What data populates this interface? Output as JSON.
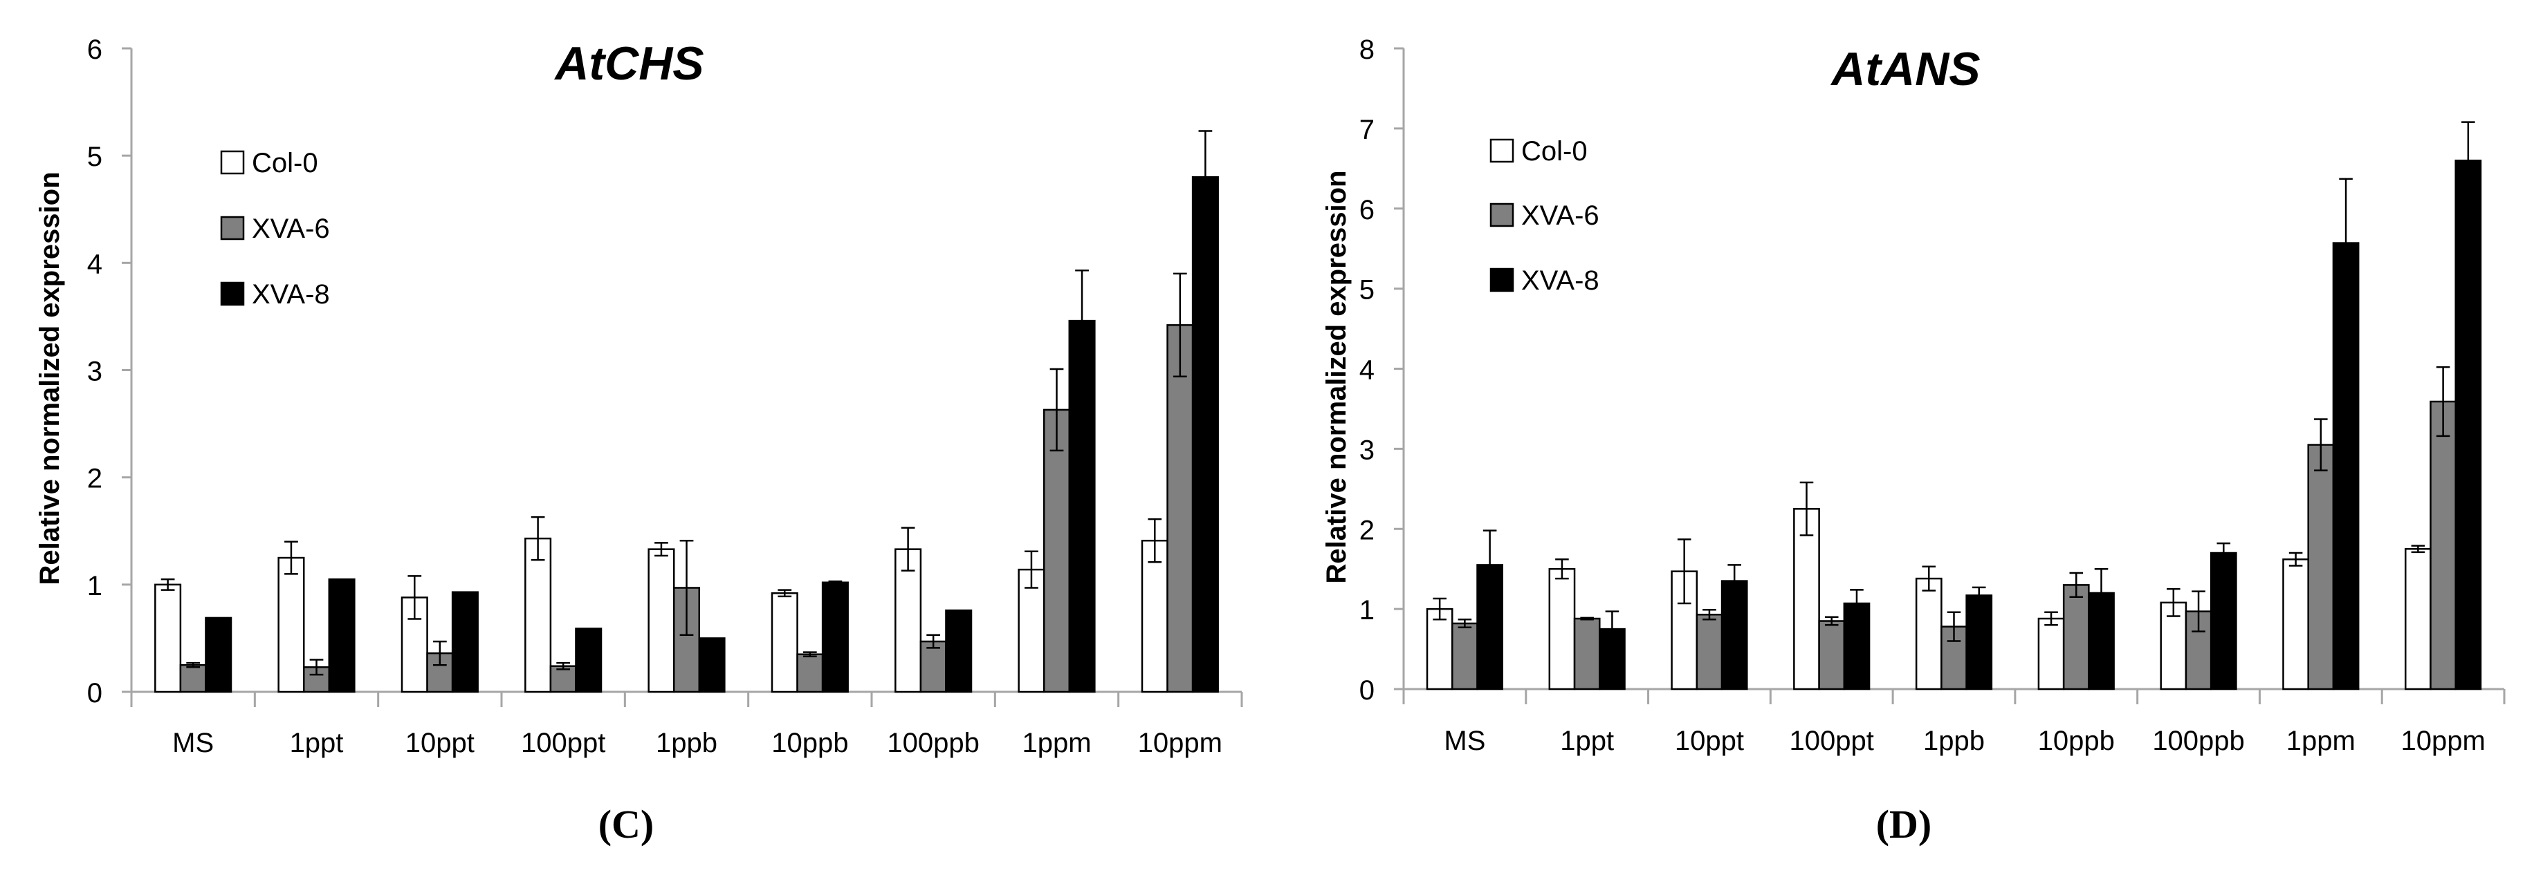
{
  "colors": {
    "col0": "#ffffff",
    "xva6": "#808080",
    "xva8": "#000000",
    "axis": "#a6a6a6",
    "stroke": "#000000"
  },
  "chart_data": [
    {
      "type": "bar",
      "panel_label": "(C)",
      "title": "AtCHS",
      "xlabel": "",
      "ylabel": "Relative normalized expression",
      "ylim": [
        0,
        6
      ],
      "yticks": [
        "0",
        "1",
        "2",
        "3",
        "4",
        "5",
        "6"
      ],
      "grid": false,
      "legend_position": "top-left",
      "categories": [
        "MS",
        "1ppt",
        "10ppt",
        "100ppt",
        "1ppb",
        "10ppb",
        "100ppb",
        "1ppm",
        "10ppm"
      ],
      "series": [
        {
          "name": "Col-0",
          "color": "#ffffff",
          "values": [
            1.0,
            1.25,
            0.88,
            1.43,
            1.33,
            0.92,
            1.33,
            1.14,
            1.41
          ],
          "errors": [
            0.05,
            0.15,
            0.2,
            0.2,
            0.06,
            0.03,
            0.2,
            0.17,
            0.2
          ]
        },
        {
          "name": "XVA-6",
          "color": "#808080",
          "values": [
            0.25,
            0.23,
            0.36,
            0.24,
            0.97,
            0.35,
            0.47,
            2.63,
            3.42
          ],
          "errors": [
            0.02,
            0.07,
            0.11,
            0.03,
            0.44,
            0.02,
            0.06,
            0.38,
            0.48
          ]
        },
        {
          "name": "XVA-8",
          "color": "#000000",
          "values": [
            0.69,
            1.05,
            0.93,
            0.59,
            0.5,
            1.02,
            0.76,
            3.46,
            4.8
          ],
          "errors": [
            0,
            0,
            0,
            0,
            0,
            0.01,
            0,
            0.47,
            0.43
          ]
        }
      ]
    },
    {
      "type": "bar",
      "panel_label": "(D)",
      "title": "AtANS",
      "xlabel": "",
      "ylabel": "Relative normalized expression",
      "ylim": [
        0,
        8
      ],
      "yticks": [
        "0",
        "1",
        "2",
        "3",
        "4",
        "5",
        "6",
        "7",
        "8"
      ],
      "grid": false,
      "legend_position": "top-left",
      "categories": [
        "MS",
        "1ppt",
        "10ppt",
        "100ppt",
        "1ppb",
        "10ppb",
        "100ppb",
        "1ppm",
        "10ppm"
      ],
      "series": [
        {
          "name": "Col-0",
          "color": "#ffffff",
          "values": [
            1.0,
            1.5,
            1.47,
            2.25,
            1.38,
            0.88,
            1.08,
            1.62,
            1.75
          ],
          "errors": [
            0.13,
            0.12,
            0.4,
            0.33,
            0.15,
            0.08,
            0.17,
            0.08,
            0.04
          ]
        },
        {
          "name": "XVA-6",
          "color": "#808080",
          "values": [
            0.82,
            0.88,
            0.93,
            0.85,
            0.78,
            1.3,
            0.97,
            3.05,
            3.59
          ],
          "errors": [
            0.05,
            0.01,
            0.06,
            0.05,
            0.18,
            0.15,
            0.25,
            0.32,
            0.43
          ]
        },
        {
          "name": "XVA-8",
          "color": "#000000",
          "values": [
            1.55,
            0.75,
            1.35,
            1.07,
            1.17,
            1.2,
            1.7,
            5.57,
            6.6
          ],
          "errors": [
            0.43,
            0.22,
            0.2,
            0.17,
            0.1,
            0.3,
            0.12,
            0.8,
            0.48
          ]
        }
      ]
    }
  ]
}
